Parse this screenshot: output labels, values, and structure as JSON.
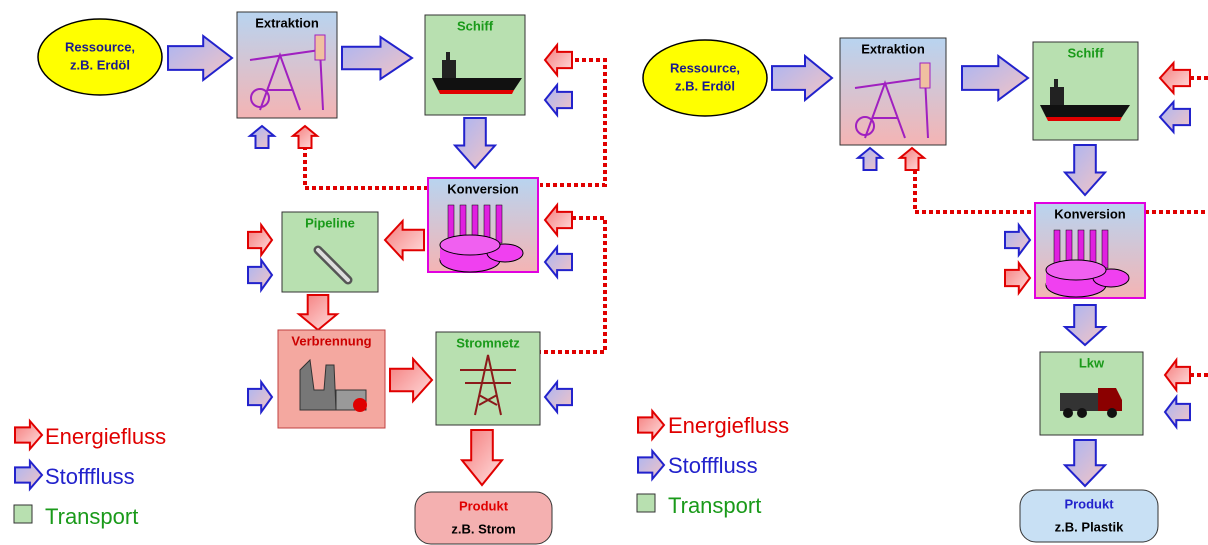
{
  "diagrams": [
    {
      "nodes": [
        {
          "lines": [
            "Ressource,",
            "z.B. Erdöl"
          ]
        },
        {
          "lines": [
            "Extraktion"
          ]
        },
        {
          "lines": [
            "Schiff"
          ]
        },
        {
          "lines": [
            "Konversion"
          ]
        },
        {
          "lines": [
            "Pipeline"
          ]
        },
        {
          "lines": [
            "Verbrennung"
          ]
        },
        {
          "lines": [
            "Stromnetz"
          ]
        },
        {
          "lines": [
            "Produkt",
            "z.B. Strom"
          ]
        }
      ],
      "legend": [
        "Energiefluss",
        "Stofffluss",
        "Transport"
      ]
    },
    {
      "nodes": [
        {
          "lines": [
            "Ressource,",
            "z.B. Erdöl"
          ]
        },
        {
          "lines": [
            "Extraktion"
          ]
        },
        {
          "lines": [
            "Schiff"
          ]
        },
        {
          "lines": [
            "Konversion"
          ]
        },
        {
          "lines": [
            "Lkw"
          ]
        },
        {
          "lines": [
            "Produkt",
            "z.B. Plastik"
          ]
        }
      ],
      "legend": [
        "Energiefluss",
        "Stofffluss",
        "Transport"
      ]
    }
  ]
}
